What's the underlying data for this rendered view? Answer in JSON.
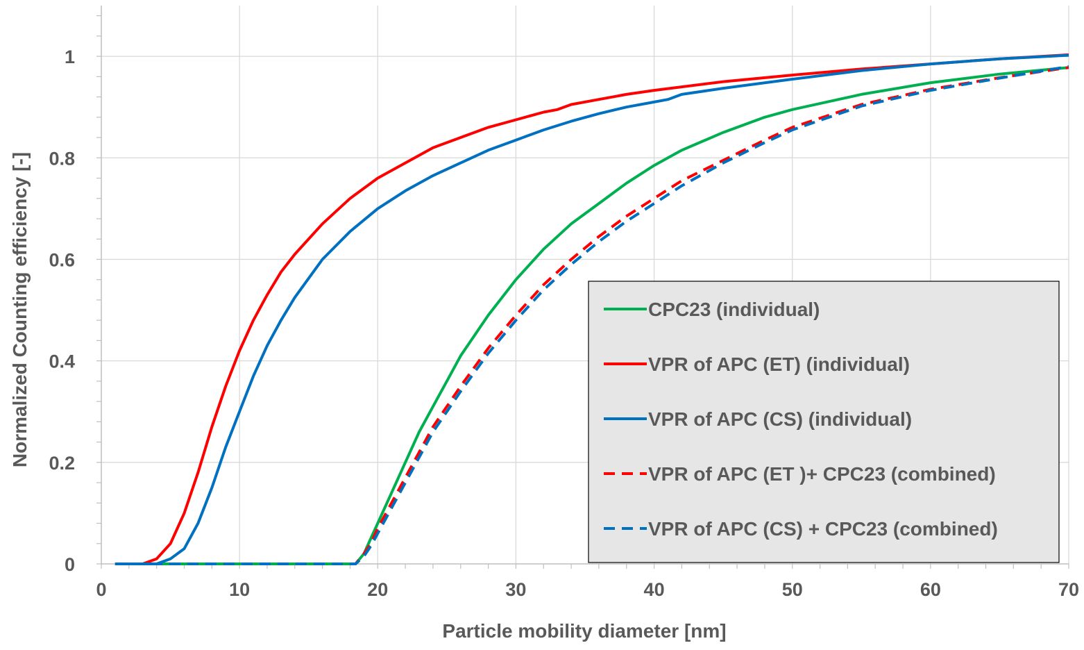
{
  "chart_data": {
    "type": "line",
    "title": "",
    "xlabel": "Particle mobility diameter [nm]",
    "ylabel": "Normalized Counting efficiency [-]",
    "xlim": [
      0,
      70
    ],
    "ylim": [
      0,
      1.1
    ],
    "x_ticks": [
      0,
      10,
      20,
      30,
      40,
      50,
      60,
      70
    ],
    "x_tick_labels": [
      "0",
      "10",
      "20",
      "30",
      "40",
      "50",
      "60",
      "70"
    ],
    "y_ticks": [
      0,
      0.2,
      0.4,
      0.6,
      0.8,
      1
    ],
    "y_tick_labels": [
      "0",
      "0.2",
      "0.4",
      "0.6",
      "0.8",
      "1"
    ],
    "grid": true,
    "legend_position": "bottom-right",
    "legend_background": "#e6e6e6",
    "series": [
      {
        "name": "CPC23 (individual)",
        "color": "#00b050",
        "dash": "solid",
        "x": [
          1,
          18.4,
          19,
          19.5,
          20,
          21,
          22,
          23,
          24,
          25,
          26,
          28,
          30,
          32,
          34,
          36,
          38,
          40,
          42,
          45,
          48,
          50,
          55,
          60,
          65,
          70
        ],
        "y": [
          0,
          0,
          0.02,
          0.05,
          0.08,
          0.14,
          0.2,
          0.26,
          0.31,
          0.36,
          0.41,
          0.49,
          0.56,
          0.62,
          0.67,
          0.71,
          0.75,
          0.785,
          0.815,
          0.85,
          0.88,
          0.895,
          0.925,
          0.948,
          0.965,
          0.978
        ]
      },
      {
        "name": "VPR of APC (ET) (individual)",
        "color": "#ff0000",
        "dash": "solid",
        "x": [
          1,
          3,
          4,
          5,
          6,
          7,
          8,
          9,
          10,
          11,
          12,
          13,
          14,
          16,
          18,
          20,
          22,
          24,
          26,
          28,
          30,
          32,
          33,
          34,
          36,
          38,
          40,
          45,
          50,
          55,
          60,
          65,
          70
        ],
        "y": [
          0,
          0,
          0.01,
          0.04,
          0.1,
          0.18,
          0.27,
          0.35,
          0.42,
          0.48,
          0.53,
          0.575,
          0.61,
          0.67,
          0.72,
          0.76,
          0.79,
          0.82,
          0.84,
          0.86,
          0.875,
          0.89,
          0.895,
          0.905,
          0.915,
          0.925,
          0.933,
          0.95,
          0.963,
          0.975,
          0.985,
          0.995,
          1.003
        ]
      },
      {
        "name": "VPR of APC (CS) (individual)",
        "color": "#0070c0",
        "dash": "solid",
        "x": [
          1,
          4,
          5,
          6,
          7,
          8,
          9,
          10,
          11,
          12,
          13,
          14,
          16,
          18,
          20,
          22,
          24,
          26,
          28,
          30,
          32,
          34,
          36,
          38,
          40,
          41,
          42,
          45,
          50,
          55,
          60,
          65,
          70
        ],
        "y": [
          0,
          0,
          0.01,
          0.03,
          0.08,
          0.15,
          0.23,
          0.3,
          0.37,
          0.43,
          0.48,
          0.525,
          0.6,
          0.655,
          0.7,
          0.735,
          0.765,
          0.79,
          0.815,
          0.835,
          0.855,
          0.872,
          0.887,
          0.9,
          0.91,
          0.915,
          0.925,
          0.937,
          0.955,
          0.972,
          0.985,
          0.995,
          1.002
        ]
      },
      {
        "name": "VPR of APC (ET )+ CPC23 (combined)",
        "color": "#ff0000",
        "dash": "dashed",
        "x": [
          1,
          18.4,
          19,
          19.5,
          20,
          21,
          22,
          23,
          24,
          25,
          26,
          28,
          30,
          32,
          34,
          36,
          38,
          40,
          42,
          45,
          48,
          50,
          55,
          60,
          65,
          70
        ],
        "y": [
          0,
          0,
          0.02,
          0.04,
          0.07,
          0.12,
          0.17,
          0.22,
          0.27,
          0.31,
          0.35,
          0.425,
          0.49,
          0.55,
          0.6,
          0.645,
          0.685,
          0.72,
          0.755,
          0.795,
          0.835,
          0.86,
          0.905,
          0.935,
          0.958,
          0.978
        ]
      },
      {
        "name": "VPR of APC (CS) + CPC23 (combined)",
        "color": "#0070c0",
        "dash": "dashed",
        "x": [
          1,
          18.4,
          19,
          19.5,
          20,
          21,
          22,
          23,
          24,
          25,
          26,
          28,
          30,
          32,
          34,
          36,
          38,
          40,
          42,
          45,
          48,
          50,
          55,
          60,
          65,
          70
        ],
        "y": [
          0,
          0,
          0.015,
          0.035,
          0.06,
          0.11,
          0.16,
          0.21,
          0.26,
          0.3,
          0.34,
          0.415,
          0.48,
          0.54,
          0.59,
          0.635,
          0.675,
          0.71,
          0.745,
          0.79,
          0.83,
          0.855,
          0.902,
          0.933,
          0.957,
          0.98
        ]
      }
    ]
  }
}
